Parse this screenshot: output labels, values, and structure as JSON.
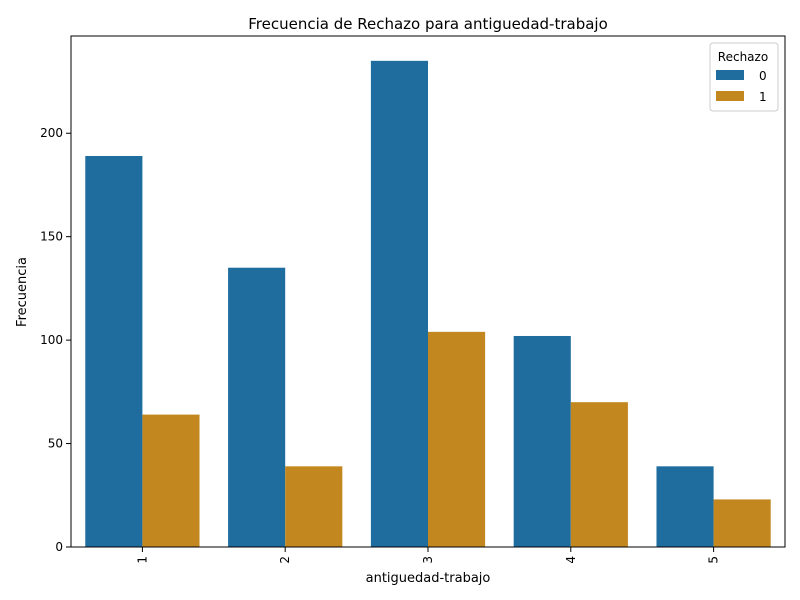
{
  "chart_data": {
    "type": "bar",
    "title": "Frecuencia de Rechazo para antiguedad-trabajo",
    "xlabel": "antiguedad-trabajo",
    "ylabel": "Frecuencia",
    "categories": [
      "1",
      "2",
      "3",
      "4",
      "5"
    ],
    "series": [
      {
        "name": "0",
        "color": "#1f6d9e",
        "values": [
          189,
          135,
          235,
          102,
          39
        ]
      },
      {
        "name": "1",
        "color": "#c2881f",
        "values": [
          64,
          39,
          104,
          70,
          23
        ]
      }
    ],
    "yticks": [
      0,
      50,
      100,
      150,
      200
    ],
    "ylim": [
      0,
      247
    ],
    "legend": {
      "title": "Rechazo",
      "placement": "top-right"
    },
    "grid": false
  }
}
